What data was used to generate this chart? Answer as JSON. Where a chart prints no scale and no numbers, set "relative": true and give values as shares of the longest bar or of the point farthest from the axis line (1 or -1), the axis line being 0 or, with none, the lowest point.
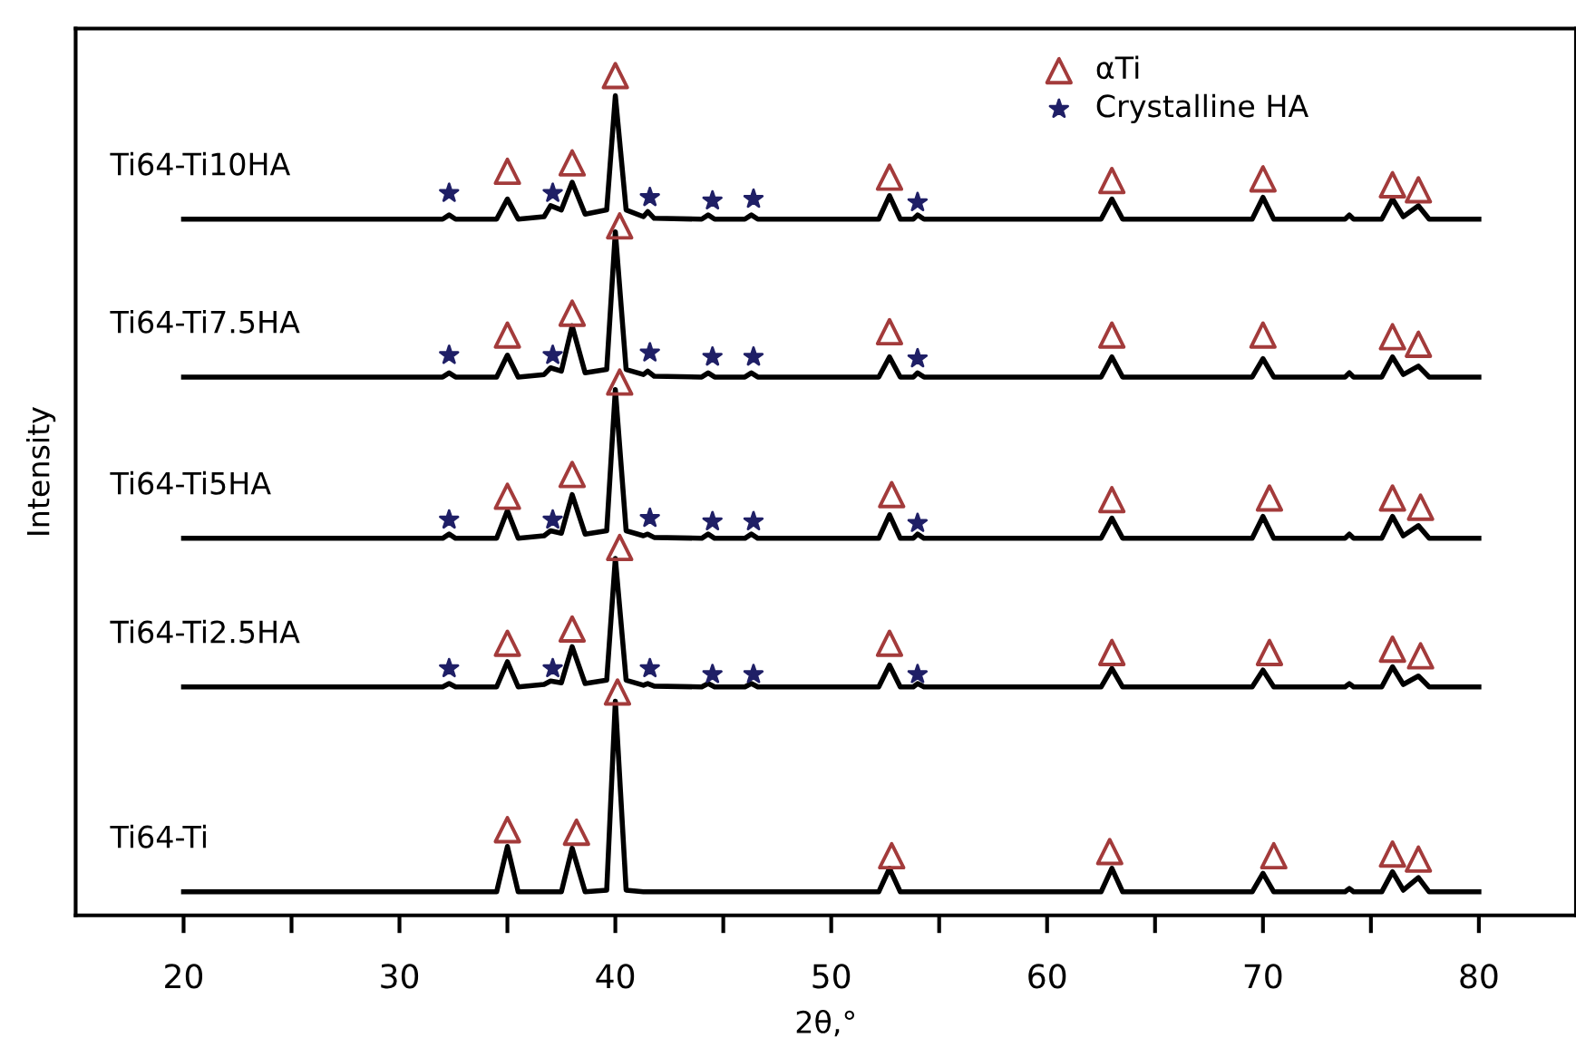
{
  "chart_data": {
    "type": "line",
    "relative": true,
    "xlabel": "2θ,°",
    "ylabel": "Intensity",
    "xlim": [
      15,
      84.5
    ],
    "xticks": [
      20,
      {
        "value": 25,
        "label": null
      },
      30,
      {
        "value": 35,
        "label": null
      },
      40,
      {
        "value": 45,
        "label": null
      },
      50,
      {
        "value": 55,
        "label": null
      },
      60,
      {
        "value": 65,
        "label": null
      },
      70,
      {
        "value": 75,
        "label": null
      },
      80
    ],
    "grid": false,
    "legend": "top right",
    "x": [
      20,
      32.0,
      32.3,
      32.6,
      34.5,
      35,
      35.5,
      36.7,
      37,
      37.5,
      38,
      38.6,
      39.6,
      40,
      40.5,
      41.3,
      41.5,
      41.8,
      44.0,
      44.3,
      44.6,
      46.0,
      46.3,
      46.6,
      52.2,
      52.7,
      53.2,
      53.8,
      54,
      54.3,
      62.5,
      63,
      63.5,
      69.5,
      70,
      70.5,
      73.8,
      74,
      74.2,
      75.5,
      76,
      76.5,
      77.2,
      77.7,
      80
    ],
    "series": [
      {
        "name": "Ti64-Ti10HA",
        "color": "#000000",
        "values": [
          0.829,
          0.829,
          0.834,
          0.829,
          0.829,
          0.853,
          0.829,
          0.832,
          0.845,
          0.84,
          0.873,
          0.835,
          0.84,
          0.976,
          0.84,
          0.832,
          0.838,
          0.83,
          0.829,
          0.834,
          0.829,
          0.829,
          0.834,
          0.829,
          0.829,
          0.857,
          0.829,
          0.829,
          0.834,
          0.829,
          0.829,
          0.853,
          0.829,
          0.829,
          0.855,
          0.829,
          0.829,
          0.834,
          0.829,
          0.829,
          0.853,
          0.832,
          0.845,
          0.829,
          0.829
        ]
      },
      {
        "name": "Ti64-Ti7.5HA",
        "color": "#000000",
        "values": [
          0.641,
          0.641,
          0.646,
          0.641,
          0.641,
          0.667,
          0.641,
          0.644,
          0.652,
          0.648,
          0.702,
          0.646,
          0.65,
          0.814,
          0.65,
          0.644,
          0.648,
          0.642,
          0.641,
          0.646,
          0.641,
          0.641,
          0.646,
          0.641,
          0.641,
          0.665,
          0.641,
          0.641,
          0.646,
          0.641,
          0.641,
          0.665,
          0.641,
          0.641,
          0.663,
          0.641,
          0.641,
          0.646,
          0.641,
          0.641,
          0.665,
          0.644,
          0.654,
          0.641,
          0.641
        ]
      },
      {
        "name": "Ti64-Ti5HA",
        "color": "#000000",
        "values": [
          0.449,
          0.449,
          0.454,
          0.449,
          0.449,
          0.482,
          0.449,
          0.452,
          0.458,
          0.455,
          0.501,
          0.454,
          0.458,
          0.626,
          0.458,
          0.452,
          0.454,
          0.45,
          0.449,
          0.454,
          0.449,
          0.449,
          0.454,
          0.449,
          0.449,
          0.477,
          0.449,
          0.449,
          0.454,
          0.449,
          0.449,
          0.473,
          0.449,
          0.449,
          0.475,
          0.449,
          0.449,
          0.454,
          0.449,
          0.449,
          0.475,
          0.452,
          0.464,
          0.449,
          0.449
        ]
      },
      {
        "name": "Ti64-Ti2.5HA",
        "color": "#000000",
        "values": [
          0.272,
          0.272,
          0.276,
          0.272,
          0.272,
          0.302,
          0.272,
          0.275,
          0.279,
          0.277,
          0.32,
          0.276,
          0.28,
          0.425,
          0.28,
          0.274,
          0.276,
          0.273,
          0.272,
          0.276,
          0.272,
          0.272,
          0.276,
          0.272,
          0.272,
          0.298,
          0.272,
          0.272,
          0.276,
          0.272,
          0.272,
          0.294,
          0.272,
          0.272,
          0.292,
          0.272,
          0.272,
          0.276,
          0.272,
          0.272,
          0.296,
          0.275,
          0.285,
          0.272,
          0.272
        ]
      },
      {
        "name": "Ti64-Ti",
        "color": "#000000",
        "values": [
          0.028,
          0.028,
          0.028,
          0.028,
          0.028,
          0.082,
          0.028,
          0.028,
          0.028,
          0.028,
          0.08,
          0.028,
          0.03,
          0.255,
          0.03,
          0.028,
          0.028,
          0.028,
          0.028,
          0.028,
          0.028,
          0.028,
          0.028,
          0.028,
          0.028,
          0.056,
          0.028,
          0.028,
          0.028,
          0.028,
          0.028,
          0.056,
          0.028,
          0.028,
          0.05,
          0.028,
          0.028,
          0.032,
          0.028,
          0.028,
          0.052,
          0.03,
          0.045,
          0.028,
          0.028
        ]
      },
      {
        "name": "αTi",
        "type": "scatter",
        "marker": "triangle",
        "color": "#a33b3b",
        "x": [
          35,
          38,
          40,
          52.7,
          63,
          70,
          76,
          77.2,
          35,
          38,
          40.2,
          52.7,
          63,
          70,
          76,
          77.2,
          35,
          38,
          40.2,
          52.8,
          63,
          70.3,
          76,
          77.3,
          35,
          38,
          40.2,
          52.7,
          63,
          70.3,
          76,
          77.3,
          35,
          38.2,
          40.1,
          52.8,
          62.9,
          70.5,
          76,
          77.2
        ],
        "values": [
          0.886,
          0.896,
          1.0,
          0.879,
          0.875,
          0.877,
          0.87,
          0.864,
          0.691,
          0.717,
          0.821,
          0.695,
          0.691,
          0.691,
          0.689,
          0.68,
          0.499,
          0.525,
          0.635,
          0.501,
          0.495,
          0.497,
          0.497,
          0.486,
          0.324,
          0.341,
          0.438,
          0.324,
          0.313,
          0.313,
          0.317,
          0.309,
          0.102,
          0.099,
          0.266,
          0.071,
          0.076,
          0.071,
          0.073,
          0.067
        ]
      },
      {
        "name": "Crystalline HA",
        "type": "scatter",
        "marker": "star",
        "color": "#1f1f66",
        "x": [
          32.3,
          37.1,
          41.6,
          44.5,
          46.4,
          54,
          32.3,
          37.1,
          41.6,
          44.5,
          46.4,
          54,
          32.3,
          37.1,
          41.6,
          44.5,
          46.4,
          54,
          32.3,
          37.1,
          41.6,
          44.5,
          46.4,
          54
        ],
        "values": [
          0.86,
          0.86,
          0.855,
          0.851,
          0.853,
          0.849,
          0.667,
          0.667,
          0.67,
          0.665,
          0.665,
          0.663,
          0.471,
          0.471,
          0.473,
          0.469,
          0.469,
          0.467,
          0.294,
          0.294,
          0.294,
          0.287,
          0.287,
          0.287
        ]
      }
    ]
  }
}
